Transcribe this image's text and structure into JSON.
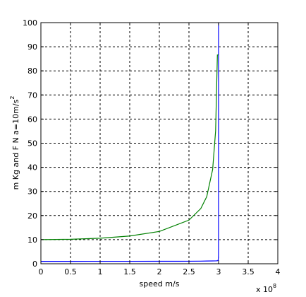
{
  "chart_data": {
    "type": "line",
    "title": "",
    "xlabel": "speed m/s",
    "ylabel_main": "m Kg and F N  a=10m/s",
    "ylabel_sup": "2",
    "x_multiplier_base": "x 10",
    "x_multiplier_exp": "8",
    "xlim": [
      0,
      4
    ],
    "ylim": [
      0,
      100
    ],
    "x_ticks": [
      0,
      0.5,
      1,
      1.5,
      2,
      2.5,
      3,
      3.5,
      4
    ],
    "x_tick_labels": [
      "0",
      "0.5",
      "1",
      "1.5",
      "2",
      "2.5",
      "3",
      "3.5",
      "4"
    ],
    "y_ticks": [
      0,
      10,
      20,
      30,
      40,
      50,
      60,
      70,
      80,
      90,
      100
    ],
    "y_tick_labels": [
      "0",
      "10",
      "20",
      "30",
      "40",
      "50",
      "60",
      "70",
      "80",
      "90",
      "100"
    ],
    "grid": true,
    "series": [
      {
        "color": "#0000ff",
        "x": [
          0,
          0.5,
          1,
          1.5,
          2,
          2.5,
          2.7,
          2.8,
          2.9,
          2.95,
          2.98,
          2.99,
          2.995,
          2.998,
          2.999,
          2.9995,
          2.9998
        ],
        "y": [
          1,
          1.001,
          1.006,
          1.013,
          1.025,
          1.04,
          1.085,
          1.125,
          1.165,
          1.19,
          1.25,
          1.4,
          1.8,
          2.5,
          4,
          13,
          100
        ]
      },
      {
        "color": "#008000",
        "x": [
          0,
          0.5,
          1,
          1.5,
          2,
          2.5,
          2.7,
          2.8,
          2.9,
          2.95,
          2.98,
          2.99,
          2.995,
          2.998,
          2.999
        ],
        "y": [
          10,
          10.15,
          10.6,
          11.5,
          13.4,
          18.1,
          22.9,
          27.8,
          39.1,
          55.1,
          86.6,
          86.6,
          86.6,
          86.6,
          86.6
        ]
      }
    ]
  }
}
